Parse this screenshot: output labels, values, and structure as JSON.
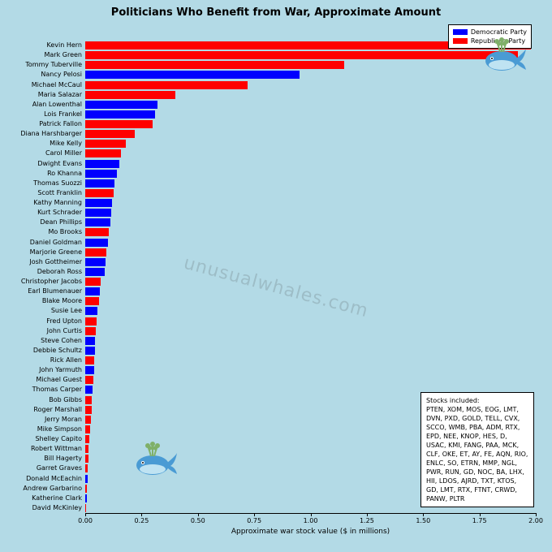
{
  "chart": {
    "title": "Politicians Who Benefit from War, Approximate Amount",
    "type": "bar-horizontal",
    "background_color": "#b3dae6",
    "xlabel": "Approximate war stock value ($ in millions)",
    "xlim": [
      0,
      2.0
    ],
    "xticks": [
      0.0,
      0.25,
      0.5,
      0.75,
      1.0,
      1.25,
      1.5,
      1.75,
      2.0
    ],
    "xtick_labels": [
      "0.00",
      "0.25",
      "0.50",
      "0.75",
      "1.00",
      "1.25",
      "1.50",
      "1.75",
      "2.00"
    ],
    "label_fontsize": 8,
    "title_fontsize": 13,
    "colors": {
      "Democratic Party": "#0000ff",
      "Republican Party": "#ff0000"
    },
    "legend_position": "top-right",
    "data": [
      {
        "name": "Kevin Hern",
        "value": 1.98,
        "party": "Republican Party"
      },
      {
        "name": "Mark Green",
        "value": 1.92,
        "party": "Republican Party"
      },
      {
        "name": "Tommy Tuberville",
        "value": 1.15,
        "party": "Republican Party"
      },
      {
        "name": "Nancy Pelosi",
        "value": 0.95,
        "party": "Democratic Party"
      },
      {
        "name": "Michael McCaul",
        "value": 0.72,
        "party": "Republican Party"
      },
      {
        "name": "Maria Salazar",
        "value": 0.4,
        "party": "Republican Party"
      },
      {
        "name": "Alan Lowenthal",
        "value": 0.32,
        "party": "Democratic Party"
      },
      {
        "name": "Lois Frankel",
        "value": 0.31,
        "party": "Democratic Party"
      },
      {
        "name": "Patrick Fallon",
        "value": 0.3,
        "party": "Republican Party"
      },
      {
        "name": "Diana Harshbarger",
        "value": 0.22,
        "party": "Republican Party"
      },
      {
        "name": "Mike Kelly",
        "value": 0.18,
        "party": "Republican Party"
      },
      {
        "name": "Carol Miller",
        "value": 0.16,
        "party": "Republican Party"
      },
      {
        "name": "Dwight Evans",
        "value": 0.15,
        "party": "Democratic Party"
      },
      {
        "name": "Ro Khanna",
        "value": 0.14,
        "party": "Democratic Party"
      },
      {
        "name": "Thomas Suozzi",
        "value": 0.13,
        "party": "Democratic Party"
      },
      {
        "name": "Scott Franklin",
        "value": 0.125,
        "party": "Republican Party"
      },
      {
        "name": "Kathy Manning",
        "value": 0.12,
        "party": "Democratic Party"
      },
      {
        "name": "Kurt Schrader",
        "value": 0.115,
        "party": "Democratic Party"
      },
      {
        "name": "Dean Phillips",
        "value": 0.11,
        "party": "Democratic Party"
      },
      {
        "name": "Mo Brooks",
        "value": 0.105,
        "party": "Republican Party"
      },
      {
        "name": "Daniel Goldman",
        "value": 0.1,
        "party": "Democratic Party"
      },
      {
        "name": "Marjorie Greene",
        "value": 0.095,
        "party": "Republican Party"
      },
      {
        "name": "Josh Gottheimer",
        "value": 0.09,
        "party": "Democratic Party"
      },
      {
        "name": "Deborah Ross",
        "value": 0.085,
        "party": "Democratic Party"
      },
      {
        "name": "Christopher Jacobs",
        "value": 0.07,
        "party": "Republican Party"
      },
      {
        "name": "Earl Blumenauer",
        "value": 0.065,
        "party": "Democratic Party"
      },
      {
        "name": "Blake Moore",
        "value": 0.06,
        "party": "Republican Party"
      },
      {
        "name": "Susie Lee",
        "value": 0.055,
        "party": "Democratic Party"
      },
      {
        "name": "Fred Upton",
        "value": 0.05,
        "party": "Republican Party"
      },
      {
        "name": "John Curtis",
        "value": 0.048,
        "party": "Republican Party"
      },
      {
        "name": "Steve Cohen",
        "value": 0.045,
        "party": "Democratic Party"
      },
      {
        "name": "Debbie Schultz",
        "value": 0.043,
        "party": "Democratic Party"
      },
      {
        "name": "Rick Allen",
        "value": 0.04,
        "party": "Republican Party"
      },
      {
        "name": "John Yarmuth",
        "value": 0.038,
        "party": "Democratic Party"
      },
      {
        "name": "Michael Guest",
        "value": 0.035,
        "party": "Republican Party"
      },
      {
        "name": "Thomas Carper",
        "value": 0.033,
        "party": "Democratic Party"
      },
      {
        "name": "Bob Gibbs",
        "value": 0.03,
        "party": "Republican Party"
      },
      {
        "name": "Roger Marshall",
        "value": 0.028,
        "party": "Republican Party"
      },
      {
        "name": "Jerry Moran",
        "value": 0.025,
        "party": "Republican Party"
      },
      {
        "name": "Mike Simpson",
        "value": 0.02,
        "party": "Republican Party"
      },
      {
        "name": "Shelley Capito",
        "value": 0.018,
        "party": "Republican Party"
      },
      {
        "name": "Robert Wittman",
        "value": 0.015,
        "party": "Republican Party"
      },
      {
        "name": "Bill Hagerty",
        "value": 0.013,
        "party": "Republican Party"
      },
      {
        "name": "Garret Graves",
        "value": 0.012,
        "party": "Republican Party"
      },
      {
        "name": "Donald McEachin",
        "value": 0.01,
        "party": "Democratic Party"
      },
      {
        "name": "Andrew Garbarino",
        "value": 0.008,
        "party": "Republican Party"
      },
      {
        "name": "Katherine Clark",
        "value": 0.006,
        "party": "Democratic Party"
      },
      {
        "name": "David McKinley",
        "value": 0.004,
        "party": "Republican Party"
      }
    ]
  },
  "legend": {
    "items": [
      {
        "label": "Democratic Party",
        "color": "#0000ff"
      },
      {
        "label": "Republican Party",
        "color": "#ff0000"
      }
    ]
  },
  "stocks_box": {
    "heading": "Stocks included:",
    "body": "PTEN, XOM, MOS, EOG, LMT, DVN, PXD, GOLD, TELL, CVX, SCCO, WMB, PBA, ADM, RTX, EPD, NEE, KNOP, HES, D, USAC, KMI, FANG, PAA, MCK, CLF, OKE, ET, AY, FE, AQN, RIO, ENLC, SO, ETRN, MMP, NGL, PWR, RUN, GD, NOC, BA, LHX, HII, LDOS, AJRD, TXT, KTOS, GD, LMT, RTX, FTNT, CRWD, PANW, PLTR"
  },
  "watermark": "unusualwhales.com",
  "whale_icon": {
    "body_color": "#4a9bd4",
    "money_color": "#7fb069"
  }
}
